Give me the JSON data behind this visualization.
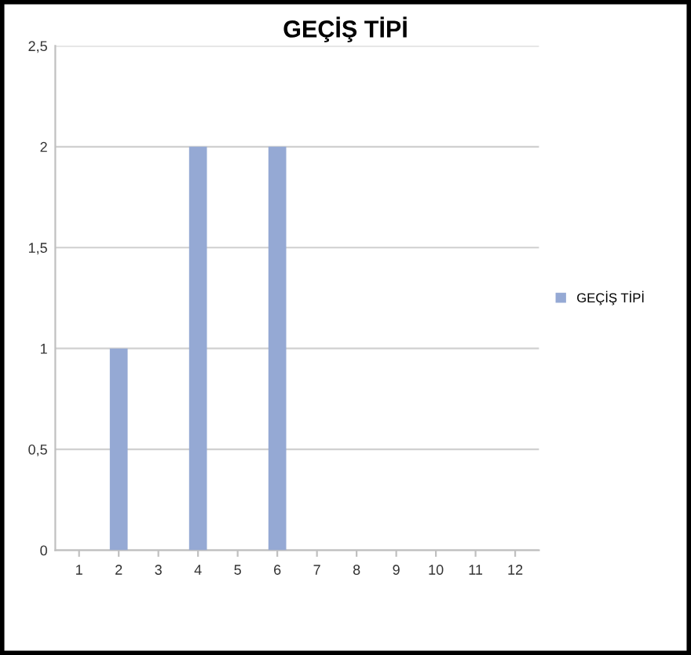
{
  "chart_data": {
    "type": "bar",
    "title": "GEÇİŞ TİPİ",
    "categories": [
      "1",
      "2",
      "3",
      "4",
      "5",
      "6",
      "7",
      "8",
      "9",
      "10",
      "11",
      "12"
    ],
    "series": [
      {
        "name": "GEÇİŞ TİPİ",
        "color": "#95a9d4",
        "values": [
          0,
          1,
          0,
          2,
          0,
          2,
          0,
          0,
          0,
          0,
          0,
          0
        ]
      }
    ],
    "ylim": [
      0,
      2.5
    ],
    "yticks": [
      0,
      {
        "value": 0.5,
        "label": "0,5"
      },
      1,
      {
        "value": 1.5,
        "label": "1,5"
      },
      2,
      {
        "value": 2.5,
        "label": "2,5"
      }
    ],
    "grid": "y",
    "legend": "right"
  }
}
